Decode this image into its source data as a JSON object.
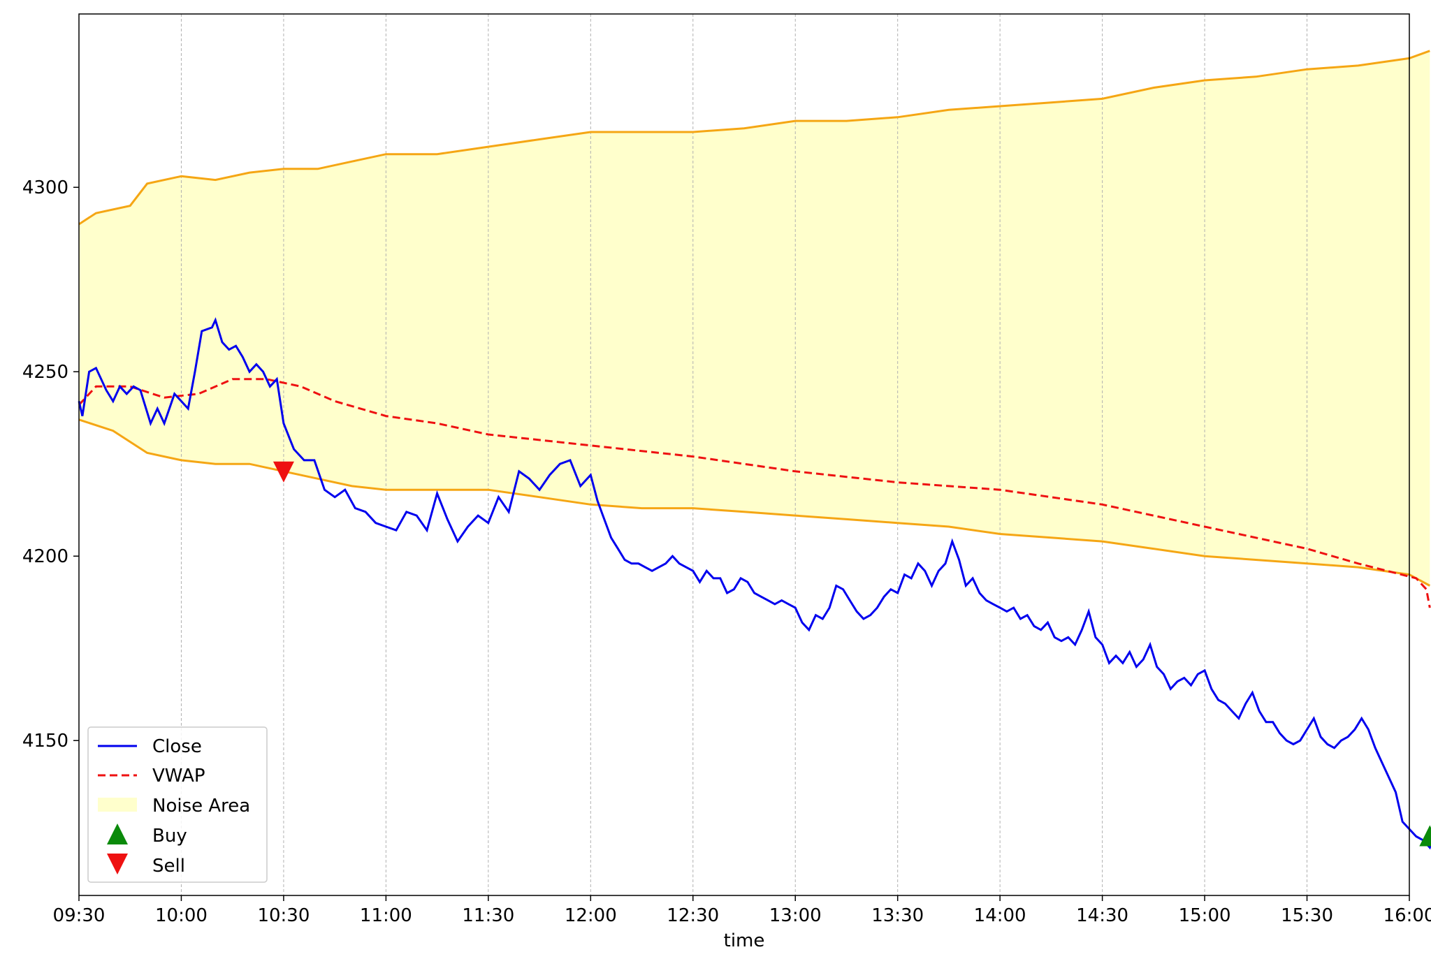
{
  "chart_data": {
    "type": "line",
    "xlabel": "time",
    "ylabel": "",
    "title": "",
    "x_ticks": [
      "09:30",
      "10:00",
      "10:30",
      "11:00",
      "11:30",
      "12:00",
      "12:30",
      "13:00",
      "13:30",
      "14:00",
      "14:30",
      "15:00",
      "15:30",
      "16:00"
    ],
    "y_ticks": [
      4150,
      4200,
      4250,
      4300
    ],
    "xlim": [
      "09:30",
      "16:00"
    ],
    "ylim": [
      4108,
      4347
    ],
    "grid": "vertical dashed at x ticks",
    "legend": {
      "placement": "lower-left",
      "entries": [
        "Close",
        "VWAP",
        "Noise Area",
        "Buy",
        "Sell"
      ]
    },
    "colors": {
      "close": "#0000ee",
      "vwap": "#ee1111",
      "band": "#f5a614",
      "band_fill": "#ffffcc",
      "buy": "#0a8a0a",
      "sell": "#ee1111"
    },
    "series": [
      {
        "name": "Close",
        "points": [
          [
            "09:30",
            4242
          ],
          [
            "09:31",
            4238
          ],
          [
            "09:33",
            4250
          ],
          [
            "09:35",
            4251
          ],
          [
            "09:38",
            4245
          ],
          [
            "09:40",
            4242
          ],
          [
            "09:42",
            4246
          ],
          [
            "09:44",
            4244
          ],
          [
            "09:46",
            4246
          ],
          [
            "09:48",
            4245
          ],
          [
            "09:51",
            4236
          ],
          [
            "09:53",
            4240
          ],
          [
            "09:55",
            4236
          ],
          [
            "09:58",
            4244
          ],
          [
            "10:00",
            4242
          ],
          [
            "10:02",
            4240
          ],
          [
            "10:04",
            4250
          ],
          [
            "10:06",
            4261
          ],
          [
            "10:09",
            4262
          ],
          [
            "10:10",
            4264
          ],
          [
            "10:12",
            4258
          ],
          [
            "10:14",
            4256
          ],
          [
            "10:16",
            4257
          ],
          [
            "10:18",
            4254
          ],
          [
            "10:20",
            4250
          ],
          [
            "10:22",
            4252
          ],
          [
            "10:24",
            4250
          ],
          [
            "10:26",
            4246
          ],
          [
            "10:28",
            4248
          ],
          [
            "10:30",
            4236
          ],
          [
            "10:33",
            4229
          ],
          [
            "10:36",
            4226
          ],
          [
            "10:39",
            4226
          ],
          [
            "10:42",
            4218
          ],
          [
            "10:45",
            4216
          ],
          [
            "10:48",
            4218
          ],
          [
            "10:51",
            4213
          ],
          [
            "10:54",
            4212
          ],
          [
            "10:57",
            4209
          ],
          [
            "11:00",
            4208
          ],
          [
            "11:03",
            4207
          ],
          [
            "11:06",
            4212
          ],
          [
            "11:09",
            4211
          ],
          [
            "11:12",
            4207
          ],
          [
            "11:15",
            4217
          ],
          [
            "11:18",
            4210
          ],
          [
            "11:21",
            4204
          ],
          [
            "11:24",
            4208
          ],
          [
            "11:27",
            4211
          ],
          [
            "11:30",
            4209
          ],
          [
            "11:33",
            4216
          ],
          [
            "11:36",
            4212
          ],
          [
            "11:39",
            4223
          ],
          [
            "11:42",
            4221
          ],
          [
            "11:45",
            4218
          ],
          [
            "11:48",
            4222
          ],
          [
            "11:51",
            4225
          ],
          [
            "11:54",
            4226
          ],
          [
            "11:57",
            4219
          ],
          [
            "12:00",
            4222
          ],
          [
            "12:02",
            4215
          ],
          [
            "12:04",
            4210
          ],
          [
            "12:06",
            4205
          ],
          [
            "12:08",
            4202
          ],
          [
            "12:10",
            4199
          ],
          [
            "12:12",
            4198
          ],
          [
            "12:14",
            4198
          ],
          [
            "12:16",
            4197
          ],
          [
            "12:18",
            4196
          ],
          [
            "12:20",
            4197
          ],
          [
            "12:22",
            4198
          ],
          [
            "12:24",
            4200
          ],
          [
            "12:26",
            4198
          ],
          [
            "12:28",
            4197
          ],
          [
            "12:30",
            4196
          ],
          [
            "12:32",
            4193
          ],
          [
            "12:34",
            4196
          ],
          [
            "12:36",
            4194
          ],
          [
            "12:38",
            4194
          ],
          [
            "12:40",
            4190
          ],
          [
            "12:42",
            4191
          ],
          [
            "12:44",
            4194
          ],
          [
            "12:46",
            4193
          ],
          [
            "12:48",
            4190
          ],
          [
            "12:50",
            4189
          ],
          [
            "12:52",
            4188
          ],
          [
            "12:54",
            4187
          ],
          [
            "12:56",
            4188
          ],
          [
            "12:58",
            4187
          ],
          [
            "13:00",
            4186
          ],
          [
            "13:02",
            4182
          ],
          [
            "13:04",
            4180
          ],
          [
            "13:06",
            4184
          ],
          [
            "13:08",
            4183
          ],
          [
            "13:10",
            4186
          ],
          [
            "13:12",
            4192
          ],
          [
            "13:14",
            4191
          ],
          [
            "13:16",
            4188
          ],
          [
            "13:18",
            4185
          ],
          [
            "13:20",
            4183
          ],
          [
            "13:22",
            4184
          ],
          [
            "13:24",
            4186
          ],
          [
            "13:26",
            4189
          ],
          [
            "13:28",
            4191
          ],
          [
            "13:30",
            4190
          ],
          [
            "13:32",
            4195
          ],
          [
            "13:34",
            4194
          ],
          [
            "13:36",
            4198
          ],
          [
            "13:38",
            4196
          ],
          [
            "13:40",
            4192
          ],
          [
            "13:42",
            4196
          ],
          [
            "13:44",
            4198
          ],
          [
            "13:46",
            4204
          ],
          [
            "13:48",
            4199
          ],
          [
            "13:50",
            4192
          ],
          [
            "13:52",
            4194
          ],
          [
            "13:54",
            4190
          ],
          [
            "13:56",
            4188
          ],
          [
            "13:58",
            4187
          ],
          [
            "14:00",
            4186
          ],
          [
            "14:02",
            4185
          ],
          [
            "14:04",
            4186
          ],
          [
            "14:06",
            4183
          ],
          [
            "14:08",
            4184
          ],
          [
            "14:10",
            4181
          ],
          [
            "14:12",
            4180
          ],
          [
            "14:14",
            4182
          ],
          [
            "14:16",
            4178
          ],
          [
            "14:18",
            4177
          ],
          [
            "14:20",
            4178
          ],
          [
            "14:22",
            4176
          ],
          [
            "14:24",
            4180
          ],
          [
            "14:26",
            4185
          ],
          [
            "14:28",
            4178
          ],
          [
            "14:30",
            4176
          ],
          [
            "14:32",
            4171
          ],
          [
            "14:34",
            4173
          ],
          [
            "14:36",
            4171
          ],
          [
            "14:38",
            4174
          ],
          [
            "14:40",
            4170
          ],
          [
            "14:42",
            4172
          ],
          [
            "14:44",
            4176
          ],
          [
            "14:46",
            4170
          ],
          [
            "14:48",
            4168
          ],
          [
            "14:50",
            4164
          ],
          [
            "14:52",
            4166
          ],
          [
            "14:54",
            4167
          ],
          [
            "14:56",
            4165
          ],
          [
            "14:58",
            4168
          ],
          [
            "15:00",
            4169
          ],
          [
            "15:02",
            4164
          ],
          [
            "15:04",
            4161
          ],
          [
            "15:06",
            4160
          ],
          [
            "15:08",
            4158
          ],
          [
            "15:10",
            4156
          ],
          [
            "15:12",
            4160
          ],
          [
            "15:14",
            4163
          ],
          [
            "15:16",
            4158
          ],
          [
            "15:18",
            4155
          ],
          [
            "15:20",
            4155
          ],
          [
            "15:22",
            4152
          ],
          [
            "15:24",
            4150
          ],
          [
            "15:26",
            4149
          ],
          [
            "15:28",
            4150
          ],
          [
            "15:30",
            4153
          ],
          [
            "15:32",
            4156
          ],
          [
            "15:34",
            4151
          ],
          [
            "15:36",
            4149
          ],
          [
            "15:38",
            4148
          ],
          [
            "15:40",
            4150
          ],
          [
            "15:42",
            4151
          ],
          [
            "15:44",
            4153
          ],
          [
            "15:46",
            4156
          ],
          [
            "15:48",
            4153
          ],
          [
            "15:50",
            4148
          ],
          [
            "15:52",
            4144
          ],
          [
            "15:54",
            4140
          ],
          [
            "15:56",
            4136
          ],
          [
            "15:58",
            4128
          ],
          [
            "16:00",
            4126
          ],
          [
            "16:02",
            4124
          ],
          [
            "16:04",
            4123
          ],
          [
            "16:06",
            4121
          ],
          [
            "16:08",
            4126
          ]
        ]
      },
      {
        "name": "VWAP",
        "points": [
          [
            "09:30",
            4241
          ],
          [
            "09:35",
            4246
          ],
          [
            "09:45",
            4246
          ],
          [
            "09:55",
            4243
          ],
          [
            "10:05",
            4244
          ],
          [
            "10:15",
            4248
          ],
          [
            "10:25",
            4248
          ],
          [
            "10:35",
            4246
          ],
          [
            "10:45",
            4242
          ],
          [
            "11:00",
            4238
          ],
          [
            "11:15",
            4236
          ],
          [
            "11:30",
            4233
          ],
          [
            "12:00",
            4230
          ],
          [
            "12:30",
            4227
          ],
          [
            "13:00",
            4223
          ],
          [
            "13:30",
            4220
          ],
          [
            "14:00",
            4218
          ],
          [
            "14:30",
            4214
          ],
          [
            "15:00",
            4208
          ],
          [
            "15:30",
            4202
          ],
          [
            "15:45",
            4198
          ],
          [
            "16:02",
            4194
          ],
          [
            "16:05",
            4191
          ],
          [
            "16:06",
            4186
          ]
        ]
      },
      {
        "name": "Noise Area upper",
        "points": [
          [
            "09:30",
            4290
          ],
          [
            "09:35",
            4293
          ],
          [
            "09:45",
            4295
          ],
          [
            "09:50",
            4301
          ],
          [
            "10:00",
            4303
          ],
          [
            "10:10",
            4302
          ],
          [
            "10:20",
            4304
          ],
          [
            "10:30",
            4305
          ],
          [
            "10:40",
            4305
          ],
          [
            "10:50",
            4307
          ],
          [
            "11:00",
            4309
          ],
          [
            "11:15",
            4309
          ],
          [
            "11:30",
            4311
          ],
          [
            "11:45",
            4313
          ],
          [
            "12:00",
            4315
          ],
          [
            "12:15",
            4315
          ],
          [
            "12:30",
            4315
          ],
          [
            "12:45",
            4316
          ],
          [
            "13:00",
            4318
          ],
          [
            "13:15",
            4318
          ],
          [
            "13:30",
            4319
          ],
          [
            "13:45",
            4321
          ],
          [
            "14:00",
            4322
          ],
          [
            "14:15",
            4323
          ],
          [
            "14:30",
            4324
          ],
          [
            "14:45",
            4327
          ],
          [
            "15:00",
            4329
          ],
          [
            "15:15",
            4330
          ],
          [
            "15:30",
            4332
          ],
          [
            "15:45",
            4333
          ],
          [
            "16:00",
            4335
          ],
          [
            "16:06",
            4337
          ]
        ]
      },
      {
        "name": "Noise Area lower",
        "points": [
          [
            "09:30",
            4237
          ],
          [
            "09:40",
            4234
          ],
          [
            "09:50",
            4228
          ],
          [
            "10:00",
            4226
          ],
          [
            "10:10",
            4225
          ],
          [
            "10:20",
            4225
          ],
          [
            "10:30",
            4223
          ],
          [
            "10:40",
            4221
          ],
          [
            "10:50",
            4219
          ],
          [
            "11:00",
            4218
          ],
          [
            "11:15",
            4218
          ],
          [
            "11:30",
            4218
          ],
          [
            "11:45",
            4216
          ],
          [
            "12:00",
            4214
          ],
          [
            "12:15",
            4213
          ],
          [
            "12:30",
            4213
          ],
          [
            "12:45",
            4212
          ],
          [
            "13:00",
            4211
          ],
          [
            "13:15",
            4210
          ],
          [
            "13:30",
            4209
          ],
          [
            "13:45",
            4208
          ],
          [
            "14:00",
            4206
          ],
          [
            "14:15",
            4205
          ],
          [
            "14:30",
            4204
          ],
          [
            "14:45",
            4202
          ],
          [
            "15:00",
            4200
          ],
          [
            "15:15",
            4199
          ],
          [
            "15:30",
            4198
          ],
          [
            "15:45",
            4197
          ],
          [
            "16:00",
            4195
          ],
          [
            "16:06",
            4192
          ]
        ]
      }
    ],
    "markers": [
      {
        "name": "Sell",
        "x": "10:30",
        "y": 4223
      },
      {
        "name": "Buy",
        "x": "16:06",
        "y": 4124
      }
    ]
  }
}
